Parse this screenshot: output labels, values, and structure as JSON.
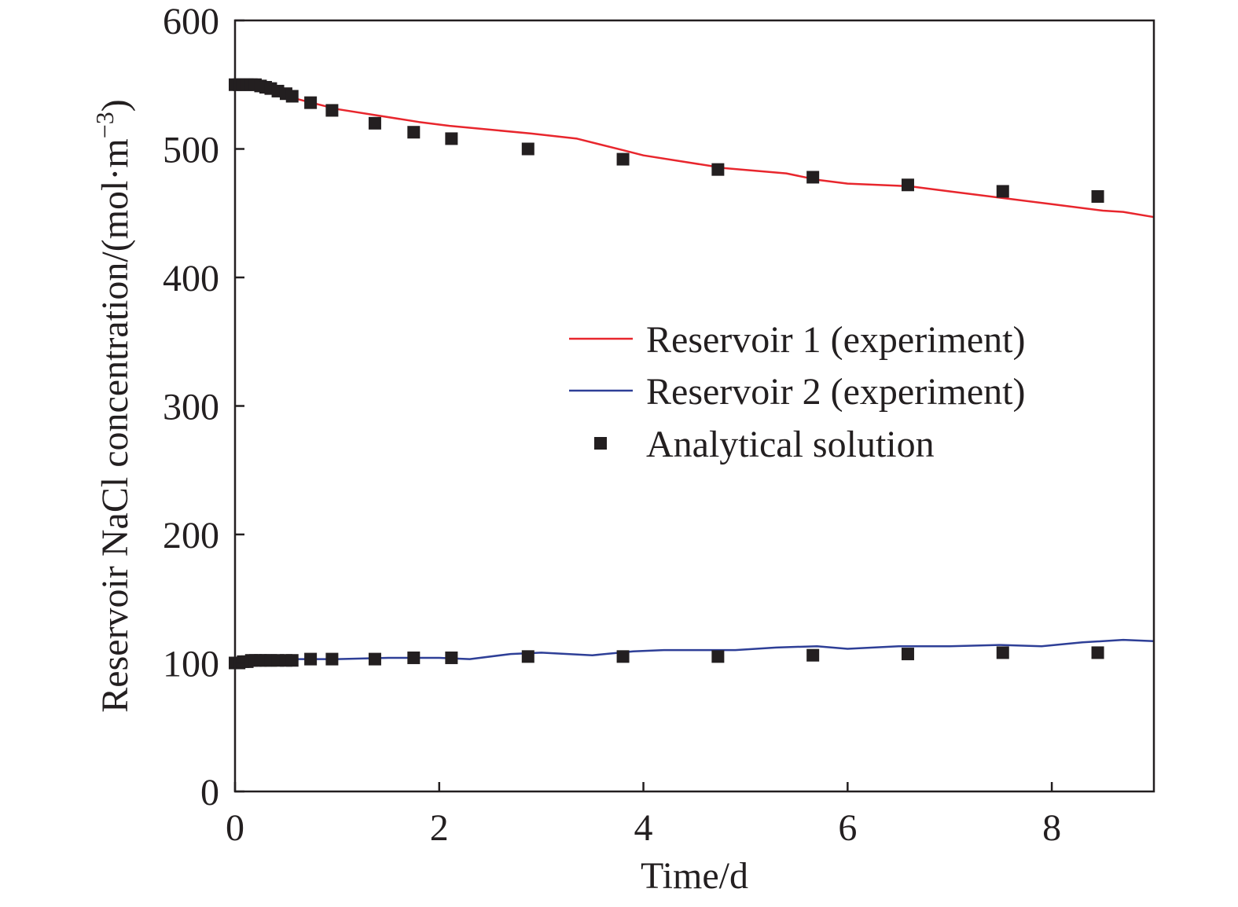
{
  "chart_data": {
    "type": "line",
    "xlabel": "Time/d",
    "ylabel": "Reservoir NaCl concentration/(mol·m",
    "ylabel_superscript": "−3",
    "ylabel_suffix": ")",
    "xlim": [
      0,
      9
    ],
    "ylim": [
      0,
      600
    ],
    "x_ticks": [
      0,
      2,
      4,
      6,
      8
    ],
    "y_ticks": [
      0,
      100,
      200,
      300,
      400,
      500,
      600
    ],
    "grid": false,
    "legend_position": "right-center",
    "series": [
      {
        "name": "Reservoir 1 (experiment)",
        "kind": "line",
        "color": "#e8262d",
        "x": [
          0,
          0.1,
          0.2,
          0.3,
          0.4,
          0.5,
          0.6,
          0.8,
          1.0,
          1.4,
          1.8,
          2.1,
          2.9,
          3.35,
          3.8,
          4.0,
          4.4,
          4.8,
          5.4,
          5.7,
          6.0,
          6.6,
          7.0,
          7.6,
          8.0,
          8.5,
          8.7,
          9.0
        ],
        "y": [
          550,
          550,
          549,
          547,
          545,
          542,
          539,
          535,
          531,
          526,
          521,
          518,
          512,
          508,
          499,
          495,
          490,
          485,
          481,
          476,
          473,
          471,
          467,
          461,
          457,
          452,
          451,
          447
        ]
      },
      {
        "name": "Reservoir 2 (experiment)",
        "kind": "line",
        "color": "#2e3f97",
        "x": [
          0,
          0.1,
          0.2,
          0.5,
          1.0,
          1.5,
          2.0,
          2.3,
          2.7,
          3.0,
          3.5,
          3.9,
          4.2,
          4.9,
          5.3,
          5.7,
          6.0,
          6.5,
          7.0,
          7.5,
          7.9,
          8.3,
          8.7,
          9.0
        ],
        "y": [
          100,
          101,
          102,
          103,
          103,
          104,
          104,
          103,
          107,
          108,
          106,
          109,
          110,
          110,
          112,
          113,
          111,
          113,
          113,
          114,
          113,
          116,
          118,
          117
        ]
      },
      {
        "name": "Analytical solution",
        "kind": "scatter",
        "color": "#231f20",
        "upper": {
          "x": [
            0,
            0.04,
            0.08,
            0.12,
            0.16,
            0.2,
            0.25,
            0.3,
            0.35,
            0.42,
            0.5,
            0.56,
            0.74,
            0.95,
            1.37,
            1.75,
            2.12,
            2.87,
            3.8,
            4.73,
            5.66,
            6.59,
            7.52,
            8.45
          ],
          "y": [
            550,
            550,
            550,
            550,
            550,
            550,
            549,
            548,
            547,
            545,
            543,
            541,
            536,
            530,
            520,
            513,
            508,
            500,
            492,
            484,
            478,
            472,
            467,
            463
          ]
        },
        "lower": {
          "x": [
            0,
            0.04,
            0.08,
            0.12,
            0.16,
            0.2,
            0.25,
            0.3,
            0.35,
            0.42,
            0.5,
            0.56,
            0.74,
            0.95,
            1.37,
            1.75,
            2.12,
            2.87,
            3.8,
            4.73,
            5.66,
            6.59,
            7.52,
            8.45
          ],
          "y": [
            100,
            100,
            101,
            101,
            102,
            102,
            102,
            102,
            102,
            102,
            102,
            102,
            103,
            103,
            103,
            104,
            104,
            105,
            105,
            105,
            106,
            107,
            108,
            108
          ]
        }
      }
    ]
  }
}
